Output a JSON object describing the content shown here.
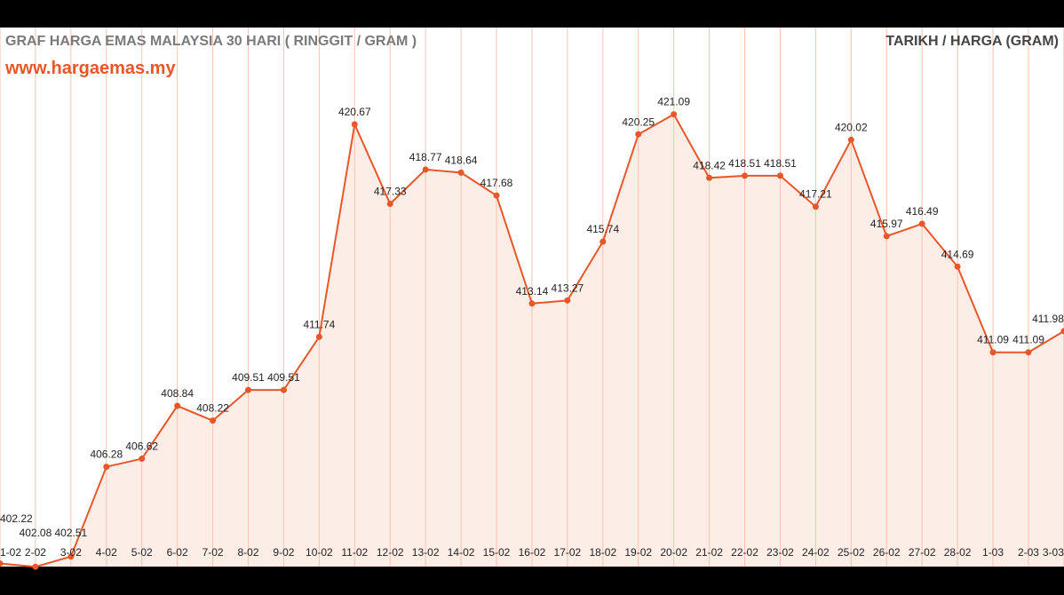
{
  "chart_data": {
    "type": "area",
    "title": "GRAF HARGA EMAS MALAYSIA 30 HARI ( RINGGIT / GRAM )",
    "subtitle": "www.hargaemas.my",
    "legend": "TARIKH / HARGA (GRAM)",
    "categories": [
      "1-02",
      "2-02",
      "3-02",
      "4-02",
      "5-02",
      "6-02",
      "7-02",
      "8-02",
      "9-02",
      "10-02",
      "11-02",
      "12-02",
      "13-02",
      "14-02",
      "15-02",
      "16-02",
      "17-02",
      "18-02",
      "19-02",
      "20-02",
      "21-02",
      "22-02",
      "23-02",
      "24-02",
      "25-02",
      "26-02",
      "27-02",
      "28-02",
      "1-03",
      "2-03",
      "3-03"
    ],
    "values": [
      402.22,
      402.08,
      402.51,
      406.28,
      406.62,
      408.84,
      408.22,
      409.51,
      409.51,
      411.74,
      420.67,
      417.33,
      418.77,
      418.64,
      417.68,
      413.14,
      413.27,
      415.74,
      420.25,
      421.09,
      418.42,
      418.51,
      418.51,
      417.21,
      420.02,
      415.97,
      416.49,
      414.69,
      411.09,
      411.09,
      411.98
    ],
    "grid": "vertical",
    "colors": {
      "line": "#e8572a",
      "fill": "#fde9e1",
      "grid": "#f3c3b0"
    }
  }
}
